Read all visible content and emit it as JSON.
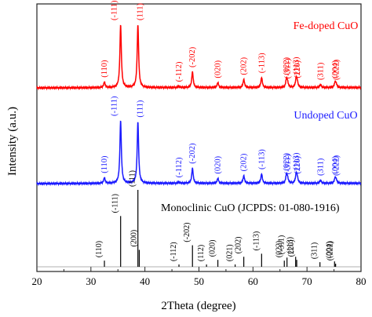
{
  "chart_data": {
    "type": "line",
    "xlabel": "2Theta (degree)",
    "ylabel": "Intensity (a.u.)",
    "xlim": [
      20,
      80
    ],
    "xticks": [
      20,
      30,
      40,
      50,
      60,
      70,
      80
    ],
    "yticks_visible": false,
    "grid": false,
    "background_points": [
      [
        20,
        0
      ],
      [
        30,
        0.05
      ],
      [
        38,
        0.09
      ],
      [
        45,
        0.1
      ],
      [
        60,
        0.1
      ],
      [
        80,
        0.1
      ]
    ],
    "series": [
      {
        "name": "Fe-doped CuO",
        "color": "#ff0000",
        "peaks": [
          {
            "two_theta": 32.5,
            "intensity": 0.09,
            "label": "(110)"
          },
          {
            "two_theta": 35.5,
            "intensity": 1.0,
            "label": "(-111)"
          },
          {
            "two_theta": 38.7,
            "intensity": 1.0,
            "label": "(111)"
          },
          {
            "two_theta": 46.3,
            "intensity": 0.02,
            "label": "(-112)"
          },
          {
            "two_theta": 48.8,
            "intensity": 0.25,
            "label": "(-202)"
          },
          {
            "two_theta": 53.5,
            "intensity": 0.08,
            "label": "(020)"
          },
          {
            "two_theta": 58.3,
            "intensity": 0.13,
            "label": "(202)"
          },
          {
            "two_theta": 61.6,
            "intensity": 0.16,
            "label": "(-113)"
          },
          {
            "two_theta": 66.2,
            "intensity": 0.13,
            "label": "(022)"
          },
          {
            "two_theta": 66.4,
            "intensity": 0.07,
            "label": "(-311)"
          },
          {
            "two_theta": 68.0,
            "intensity": 0.14,
            "label": "(113)"
          },
          {
            "two_theta": 68.2,
            "intensity": 0.08,
            "label": "(220)"
          },
          {
            "two_theta": 72.5,
            "intensity": 0.05,
            "label": "(311)"
          },
          {
            "two_theta": 75.2,
            "intensity": 0.08,
            "label": "(004)"
          },
          {
            "two_theta": 75.4,
            "intensity": 0.05,
            "label": "(-222)"
          }
        ]
      },
      {
        "name": "Undoped CuO",
        "color": "#1a1aff",
        "peaks": [
          {
            "two_theta": 32.5,
            "intensity": 0.09,
            "label": "(110)"
          },
          {
            "two_theta": 35.5,
            "intensity": 1.0,
            "label": "(-111)"
          },
          {
            "two_theta": 38.7,
            "intensity": 0.98,
            "label": "(111)"
          },
          {
            "two_theta": 46.3,
            "intensity": 0.02,
            "label": "(-112)"
          },
          {
            "two_theta": 48.8,
            "intensity": 0.24,
            "label": "(-202)"
          },
          {
            "two_theta": 53.5,
            "intensity": 0.08,
            "label": "(020)"
          },
          {
            "two_theta": 58.3,
            "intensity": 0.12,
            "label": "(202)"
          },
          {
            "two_theta": 61.6,
            "intensity": 0.15,
            "label": "(-113)"
          },
          {
            "two_theta": 66.2,
            "intensity": 0.13,
            "label": "(022)"
          },
          {
            "two_theta": 66.4,
            "intensity": 0.07,
            "label": "(-311)"
          },
          {
            "two_theta": 68.0,
            "intensity": 0.14,
            "label": "(113)"
          },
          {
            "two_theta": 68.2,
            "intensity": 0.08,
            "label": "(220)"
          },
          {
            "two_theta": 72.5,
            "intensity": 0.05,
            "label": "(311)"
          },
          {
            "two_theta": 75.2,
            "intensity": 0.08,
            "label": "(004)"
          },
          {
            "two_theta": 75.4,
            "intensity": 0.05,
            "label": "(-222)"
          }
        ]
      },
      {
        "name": "Monoclinic CuO (JCPDS: 01-080-1916)",
        "color": "#000000",
        "type": "stick",
        "peaks": [
          {
            "two_theta": 32.5,
            "intensity": 0.08,
            "label": "(110)"
          },
          {
            "two_theta": 35.5,
            "intensity": 0.66,
            "label": "(-111)"
          },
          {
            "two_theta": 38.7,
            "intensity": 1.0,
            "label": "(111)"
          },
          {
            "two_theta": 38.95,
            "intensity": 0.22,
            "label": "(200)"
          },
          {
            "two_theta": 46.3,
            "intensity": 0.03,
            "label": "(-112)"
          },
          {
            "two_theta": 48.8,
            "intensity": 0.28,
            "label": "(-202)"
          },
          {
            "two_theta": 51.4,
            "intensity": 0.03,
            "label": "(112)"
          },
          {
            "two_theta": 53.5,
            "intensity": 0.09,
            "label": "(020)"
          },
          {
            "two_theta": 56.7,
            "intensity": 0.03,
            "label": "(021)"
          },
          {
            "two_theta": 58.3,
            "intensity": 0.13,
            "label": "(202)"
          },
          {
            "two_theta": 61.6,
            "intensity": 0.17,
            "label": "(-113)"
          },
          {
            "two_theta": 65.8,
            "intensity": 0.08,
            "label": "(022)"
          },
          {
            "two_theta": 66.3,
            "intensity": 0.12,
            "label": "(-311)"
          },
          {
            "two_theta": 67.9,
            "intensity": 0.13,
            "label": "(113)"
          },
          {
            "two_theta": 68.1,
            "intensity": 0.09,
            "label": "(220)"
          },
          {
            "two_theta": 72.4,
            "intensity": 0.06,
            "label": "(311)"
          },
          {
            "two_theta": 75.1,
            "intensity": 0.07,
            "label": "(004)"
          },
          {
            "two_theta": 75.3,
            "intensity": 0.04,
            "label": "(-222)"
          }
        ]
      }
    ]
  }
}
